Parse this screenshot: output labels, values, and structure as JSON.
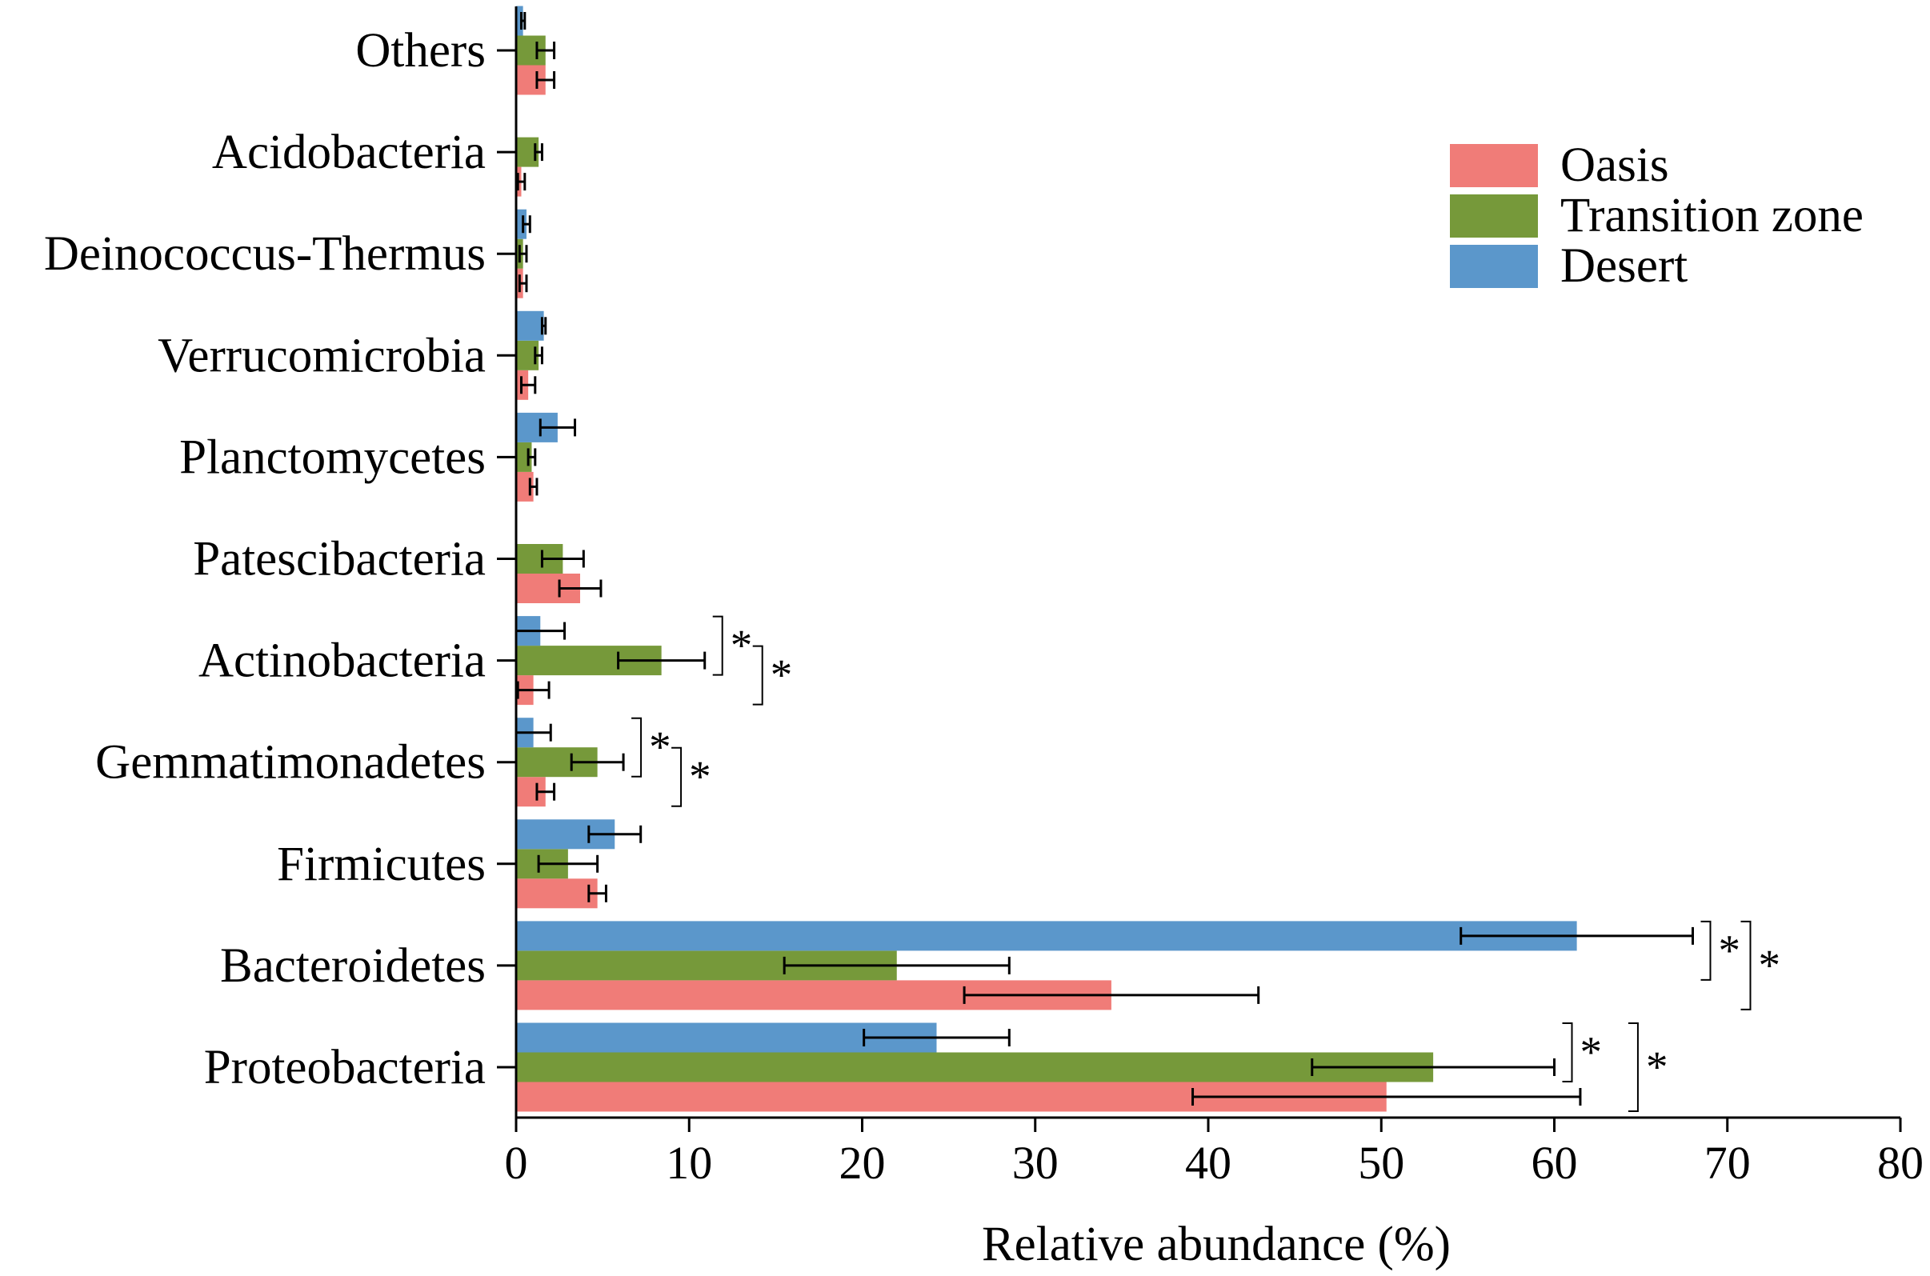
{
  "chart_data": {
    "type": "bar",
    "orientation": "horizontal",
    "title": "",
    "xlabel": "Relative abundance (%)",
    "ylabel": "",
    "xlim": [
      0,
      80
    ],
    "xticks": [
      0,
      10,
      20,
      30,
      40,
      50,
      60,
      70,
      80
    ],
    "grid": false,
    "legend_position": "top-right",
    "categories": [
      "Others",
      "Acidobacteria",
      "Deinococcus-Thermus",
      "Verrucomicrobia",
      "Planctomycetes",
      "Patescibacteria",
      "Actinobacteria",
      "Gemmatimonadetes",
      "Firmicutes",
      "Bacteroidetes",
      "Proteobacteria"
    ],
    "series": [
      {
        "name": "Oasis",
        "color": "#f07c78",
        "values": [
          1.7,
          0.3,
          0.4,
          0.7,
          1.0,
          3.7,
          1.0,
          1.7,
          4.7,
          34.4,
          50.3
        ],
        "errors": [
          0.5,
          0.2,
          0.2,
          0.4,
          0.2,
          1.2,
          0.9,
          0.5,
          0.5,
          8.5,
          11.2
        ]
      },
      {
        "name": "Transition zone",
        "color": "#76993a",
        "values": [
          1.7,
          1.3,
          0.4,
          1.3,
          0.9,
          2.7,
          8.4,
          4.7,
          3.0,
          22.0,
          53.0
        ],
        "errors": [
          0.5,
          0.2,
          0.2,
          0.2,
          0.2,
          1.2,
          2.5,
          1.5,
          1.7,
          6.5,
          7.0
        ]
      },
      {
        "name": "Desert",
        "color": "#5b97cb",
        "values": [
          0.4,
          0.0,
          0.6,
          1.6,
          2.4,
          0.0,
          1.4,
          1.0,
          5.7,
          61.3,
          24.3
        ],
        "errors": [
          0.1,
          0.0,
          0.2,
          0.1,
          1.0,
          0.0,
          1.4,
          1.0,
          1.5,
          6.7,
          4.2
        ]
      }
    ],
    "significance": [
      {
        "category": "Actinobacteria",
        "pair": [
          "Transition zone",
          "Desert"
        ],
        "label": "*"
      },
      {
        "category": "Actinobacteria",
        "pair": [
          "Oasis",
          "Transition zone"
        ],
        "label": "*"
      },
      {
        "category": "Gemmatimonadetes",
        "pair": [
          "Transition zone",
          "Desert"
        ],
        "label": "*"
      },
      {
        "category": "Gemmatimonadetes",
        "pair": [
          "Oasis",
          "Transition zone"
        ],
        "label": "*"
      },
      {
        "category": "Bacteroidetes",
        "pair": [
          "Transition zone",
          "Desert"
        ],
        "label": "*"
      },
      {
        "category": "Bacteroidetes",
        "pair": [
          "Oasis",
          "Desert"
        ],
        "label": "*"
      },
      {
        "category": "Proteobacteria",
        "pair": [
          "Transition zone",
          "Desert"
        ],
        "label": "*"
      },
      {
        "category": "Proteobacteria",
        "pair": [
          "Oasis",
          "Desert"
        ],
        "label": "*"
      }
    ]
  }
}
